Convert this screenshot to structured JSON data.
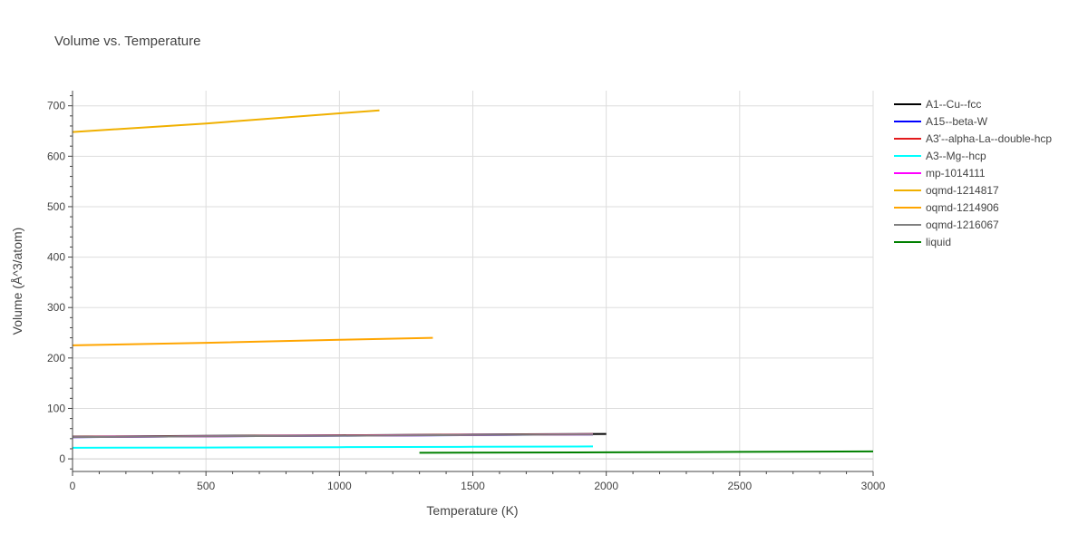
{
  "chart_data": {
    "type": "line",
    "title": "Volume vs. Temperature",
    "xlabel": "Temperature (K)",
    "ylabel": "Volume (Å^3/atom)",
    "xlim": [
      0,
      3000
    ],
    "ylim": [
      -25,
      730
    ],
    "xticks": [
      0,
      500,
      1000,
      1500,
      2000,
      2500,
      3000
    ],
    "yticks": [
      0,
      100,
      200,
      300,
      400,
      500,
      600,
      700
    ],
    "grid": true,
    "legend_position": "right",
    "series": [
      {
        "name": "A1--Cu--fcc",
        "color": "#000000",
        "x": [
          0,
          500,
          1000,
          1500,
          2000
        ],
        "y": [
          44.0,
          45.5,
          46.8,
          48.2,
          49.5
        ]
      },
      {
        "name": "A15--beta-W",
        "color": "#0000ff",
        "x": [
          0,
          500,
          1000,
          1500,
          1950
        ],
        "y": [
          43.0,
          44.5,
          45.8,
          47.0,
          48.3
        ]
      },
      {
        "name": "A3'--alpha-La--double-hcp",
        "color": "#e31a1c",
        "x": [
          0,
          500,
          1000,
          1500,
          1950
        ],
        "y": [
          43.5,
          45.0,
          46.3,
          47.6,
          48.8
        ]
      },
      {
        "name": "A3--Mg--hcp",
        "color": "#00ffff",
        "x": [
          0,
          500,
          1000,
          1500,
          1950
        ],
        "y": [
          22.0,
          22.5,
          23.2,
          23.9,
          24.6
        ]
      },
      {
        "name": "mp-1014111",
        "color": "#ff00ff",
        "x": [
          0,
          500,
          1000,
          1500,
          1950
        ],
        "y": [
          43.2,
          44.7,
          46.0,
          47.3,
          48.5
        ]
      },
      {
        "name": "oqmd-1214817",
        "color": "#f0b000",
        "x": [
          0,
          500,
          1000,
          1150
        ],
        "y": [
          648,
          665,
          685,
          691
        ]
      },
      {
        "name": "oqmd-1214906",
        "color": "#ffa500",
        "x": [
          0,
          500,
          1000,
          1350
        ],
        "y": [
          225,
          230,
          236,
          240
        ]
      },
      {
        "name": "oqmd-1216067",
        "color": "#808080",
        "x": [
          0,
          500,
          1000,
          1500,
          1950
        ],
        "y": [
          43.1,
          44.6,
          45.9,
          47.2,
          48.4
        ]
      },
      {
        "name": "liquid",
        "color": "#008000",
        "x": [
          1300,
          2000,
          2500,
          3000
        ],
        "y": [
          12.0,
          13.0,
          13.8,
          14.8
        ]
      }
    ]
  }
}
